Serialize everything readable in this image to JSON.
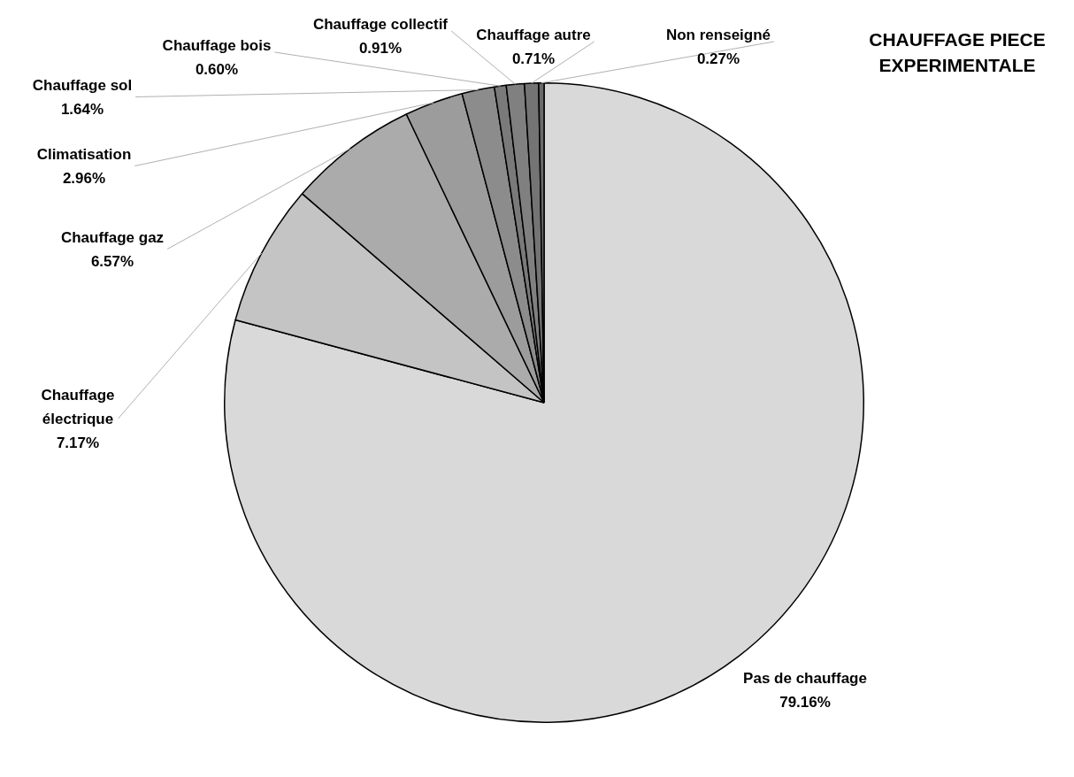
{
  "chart_data": {
    "type": "pie",
    "title": "CHAUFFAGE PIECE EXPERIMENTALE",
    "categories": [
      "Pas de chauffage",
      "Chauffage électrique",
      "Chauffage gaz",
      "Climatisation",
      "Chauffage sol",
      "Chauffage bois",
      "Chauffage collectif",
      "Chauffage autre",
      "Non renseigné"
    ],
    "values": [
      79.16,
      7.17,
      6.57,
      2.96,
      1.64,
      0.6,
      0.91,
      0.71,
      0.27
    ],
    "value_labels": [
      "79.16%",
      "7.17%",
      "6.57%",
      "2.96%",
      "1.64%",
      "0.60%",
      "0.91%",
      "0.71%",
      "0.27%"
    ],
    "colors": [
      "#d9d9d9",
      "#c4c4c4",
      "#ababab",
      "#9c9c9c",
      "#8c8c8c",
      "#7a7a7a",
      "#808080",
      "#747474",
      "#6a6a6a"
    ],
    "legend": false
  }
}
